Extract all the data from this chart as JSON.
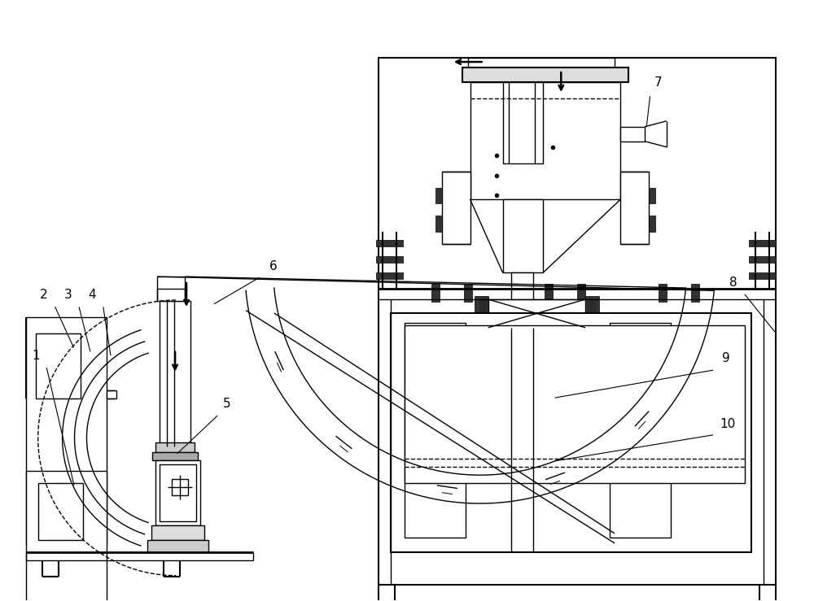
{
  "bg_color": "#ffffff",
  "line_color": "#000000",
  "lw": 1.0,
  "lw2": 1.5,
  "lw3": 2.0,
  "fs": 11
}
